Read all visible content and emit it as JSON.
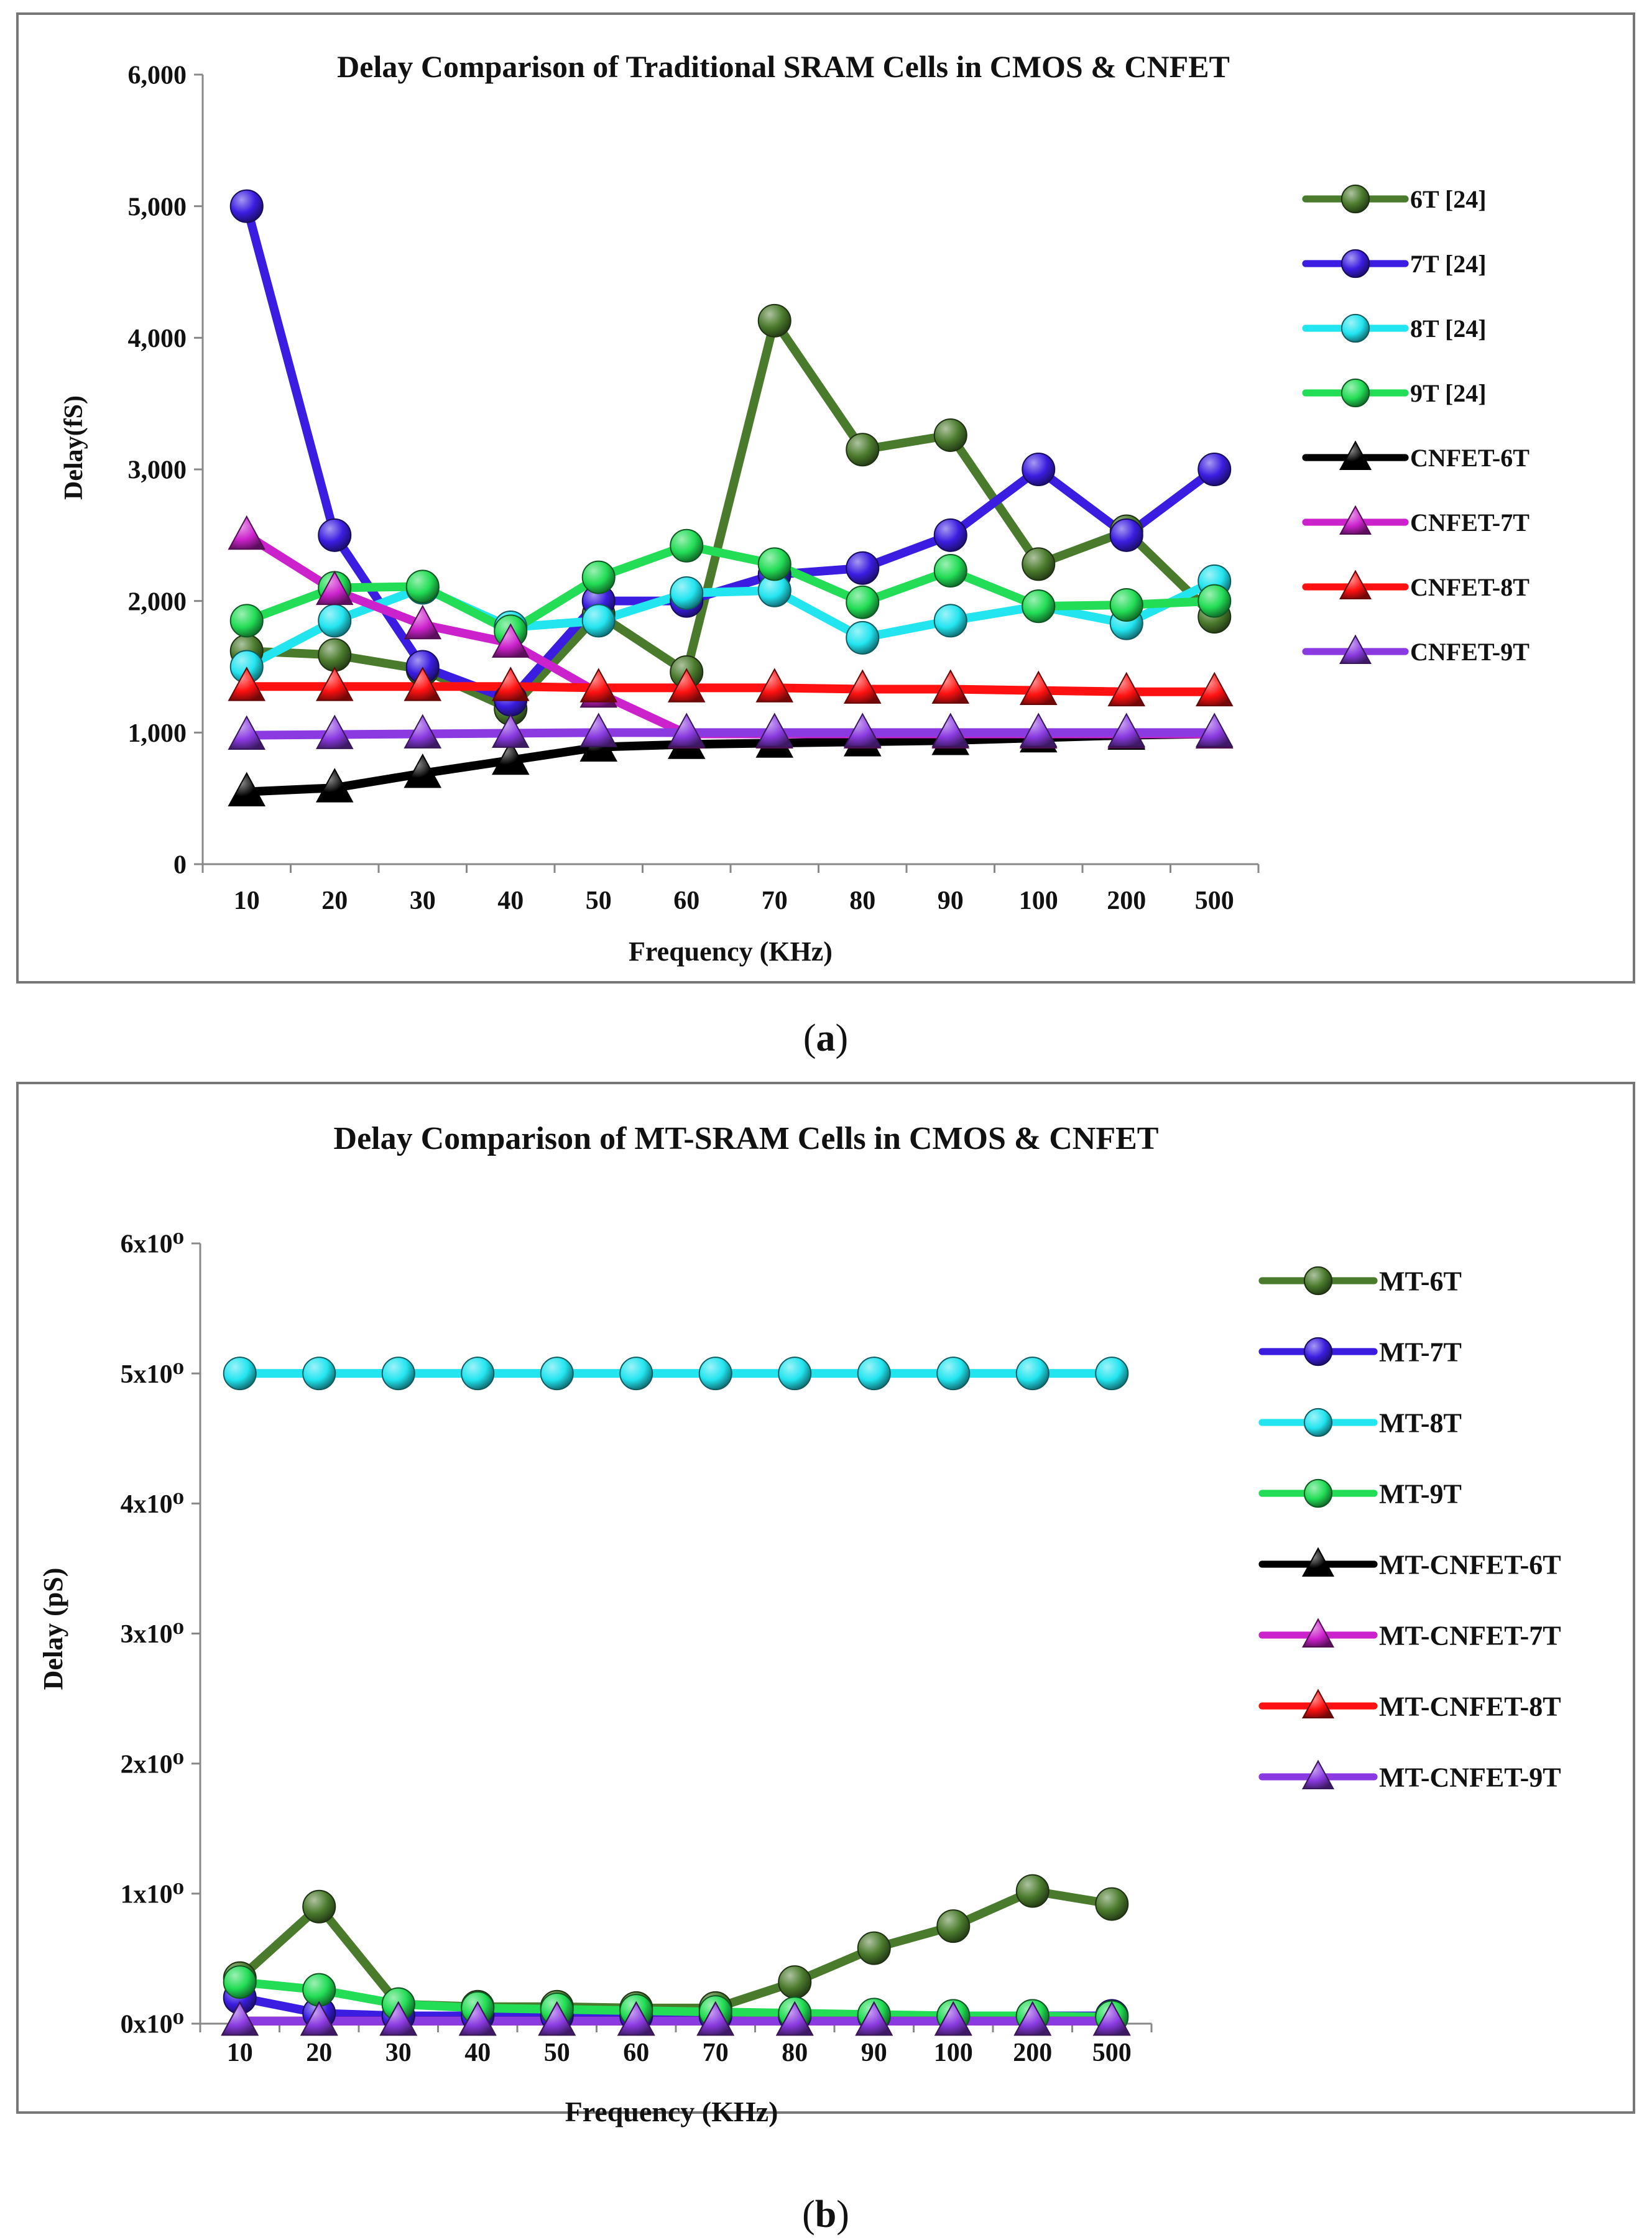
{
  "panel_a": {
    "caption_open": "(",
    "caption": "a",
    "caption_close": ")"
  },
  "panel_b": {
    "caption_open": "(",
    "caption": "b",
    "caption_close": ")"
  },
  "chart_data": [
    {
      "type": "line",
      "title": "Delay Comparison of Traditional SRAM Cells in CMOS & CNFET",
      "xlabel": "Frequency (KHz)",
      "ylabel": "Delay(fS)",
      "categories": [
        "10",
        "20",
        "30",
        "40",
        "50",
        "60",
        "70",
        "80",
        "90",
        "100",
        "200",
        "500"
      ],
      "ylim": [
        0,
        6000
      ],
      "yticks": [
        0,
        1000,
        2000,
        3000,
        4000,
        5000,
        6000
      ],
      "ytick_labels": [
        "0",
        "1,000",
        "2,000",
        "3,000",
        "4,000",
        "5,000",
        "6,000"
      ],
      "legend_position": "right",
      "series": [
        {
          "name": "6T [24]",
          "color": "#4a7a2c",
          "marker": "circle",
          "values": [
            1620,
            1590,
            1480,
            1180,
            1900,
            1460,
            4130,
            3150,
            3260,
            2280,
            2530,
            1880
          ]
        },
        {
          "name": "7T [24]",
          "color": "#3a1de0",
          "marker": "circle",
          "values": [
            5000,
            2500,
            1500,
            1250,
            2000,
            2000,
            2200,
            2250,
            2500,
            3000,
            2500,
            3000
          ]
        },
        {
          "name": "8T [24]",
          "color": "#22e5f0",
          "marker": "circle",
          "values": [
            1500,
            1850,
            2100,
            1800,
            1850,
            2060,
            2080,
            1720,
            1850,
            1960,
            1830,
            2150
          ]
        },
        {
          "name": "9T [24]",
          "color": "#22dd55",
          "marker": "circle",
          "values": [
            1850,
            2100,
            2110,
            1770,
            2180,
            2420,
            2280,
            1990,
            2230,
            1960,
            1970,
            2000
          ]
        },
        {
          "name": "CNFET-6T",
          "color": "#000000",
          "marker": "triangle",
          "values": [
            550,
            580,
            690,
            790,
            890,
            910,
            920,
            930,
            940,
            960,
            980,
            990
          ]
        },
        {
          "name": "CNFET-7T",
          "color": "#cc22cc",
          "marker": "triangle",
          "values": [
            2500,
            2080,
            1820,
            1680,
            1300,
            990,
            990,
            990,
            990,
            990,
            990,
            990
          ]
        },
        {
          "name": "CNFET-8T",
          "color": "#ff1111",
          "marker": "triangle",
          "values": [
            1350,
            1350,
            1350,
            1350,
            1340,
            1340,
            1340,
            1330,
            1330,
            1320,
            1310,
            1310
          ]
        },
        {
          "name": "CNFET-9T",
          "color": "#8a3ae0",
          "marker": "triangle",
          "values": [
            980,
            985,
            990,
            995,
            1000,
            1000,
            1000,
            1000,
            1000,
            1000,
            1000,
            1000
          ]
        }
      ]
    },
    {
      "type": "line",
      "title": "Delay Comparison of MT-SRAM Cells in CMOS & CNFET",
      "xlabel": "Frequency (KHz)",
      "ylabel": "Delay (pS)",
      "categories": [
        "10",
        "20",
        "30",
        "40",
        "50",
        "60",
        "70",
        "80",
        "90",
        "100",
        "200",
        "500"
      ],
      "ylim": [
        0,
        6
      ],
      "yticks": [
        0,
        1,
        2,
        3,
        4,
        5,
        6
      ],
      "ytick_labels": [
        "0x10⁰",
        "1x10⁰",
        "2x10⁰",
        "3x10⁰",
        "4x10⁰",
        "5x10⁰",
        "6x10⁰"
      ],
      "legend_position": "right",
      "series": [
        {
          "name": "MT-6T",
          "color": "#4a7a2c",
          "marker": "circle",
          "values": [
            0.35,
            0.9,
            0.15,
            0.13,
            0.13,
            0.12,
            0.12,
            0.32,
            0.58,
            0.75,
            1.02,
            0.92
          ]
        },
        {
          "name": "MT-7T",
          "color": "#3a1de0",
          "marker": "circle",
          "values": [
            0.2,
            0.08,
            0.06,
            0.06,
            0.06,
            0.06,
            0.06,
            0.06,
            0.06,
            0.06,
            0.06,
            0.06
          ]
        },
        {
          "name": "MT-8T",
          "color": "#22e5f0",
          "marker": "circle",
          "values": [
            5,
            5,
            5,
            5,
            5,
            5,
            5,
            5,
            5,
            5,
            5,
            5
          ]
        },
        {
          "name": "MT-9T",
          "color": "#22dd55",
          "marker": "circle",
          "values": [
            0.32,
            0.26,
            0.15,
            0.12,
            0.11,
            0.1,
            0.09,
            0.08,
            0.07,
            0.06,
            0.06,
            0.05
          ]
        },
        {
          "name": "MT-CNFET-6T",
          "color": "#000000",
          "marker": "triangle",
          "values": [
            0.02,
            0.02,
            0.02,
            0.02,
            0.02,
            0.02,
            0.02,
            0.02,
            0.02,
            0.02,
            0.02,
            0.02
          ]
        },
        {
          "name": "MT-CNFET-7T",
          "color": "#cc22cc",
          "marker": "triangle",
          "values": [
            0.02,
            0.02,
            0.02,
            0.02,
            0.02,
            0.02,
            0.02,
            0.02,
            0.02,
            0.02,
            0.02,
            0.02
          ]
        },
        {
          "name": "MT-CNFET-8T",
          "color": "#ff1111",
          "marker": "triangle",
          "values": [
            0.02,
            0.02,
            0.02,
            0.02,
            0.02,
            0.02,
            0.02,
            0.02,
            0.02,
            0.02,
            0.02,
            0.02
          ]
        },
        {
          "name": "MT-CNFET-9T",
          "color": "#8a3ae0",
          "marker": "triangle",
          "values": [
            0.02,
            0.02,
            0.02,
            0.02,
            0.02,
            0.02,
            0.02,
            0.02,
            0.02,
            0.02,
            0.02,
            0.02
          ]
        }
      ]
    }
  ]
}
